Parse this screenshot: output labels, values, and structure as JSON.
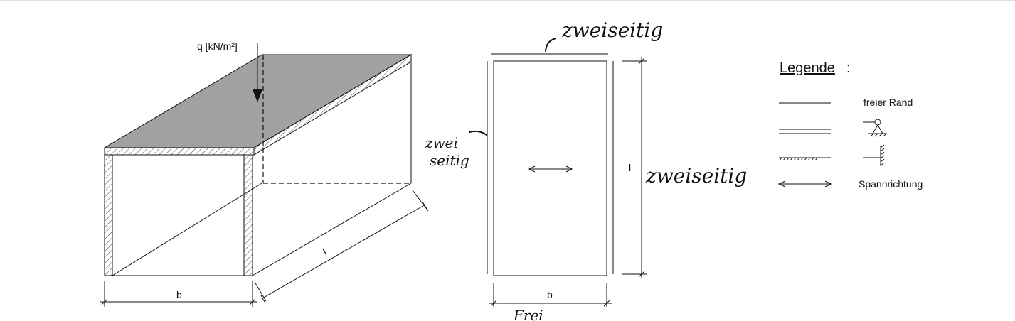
{
  "labels": {
    "load": "q [kN/m²]",
    "width_iso": "b",
    "length_iso": "l",
    "width_plan": "b",
    "length_plan": "l"
  },
  "legend": {
    "title": "Legende",
    "title_colon": ":",
    "items": [
      {
        "symbol": "free-edge",
        "label": "freier Rand"
      },
      {
        "symbol": "simple-support",
        "label": ""
      },
      {
        "symbol": "fixed-support",
        "label": ""
      },
      {
        "symbol": "span-direction",
        "label": "Spannrichtung"
      }
    ]
  },
  "handwriting": {
    "top": "zweiseitig",
    "left_line1": "zwei",
    "left_line2": "seitig",
    "right": "zweiseitig",
    "bottom": "Frei"
  },
  "colors": {
    "slab_top": "#a1a1a1",
    "line": "#111111",
    "background": "#ffffff"
  }
}
